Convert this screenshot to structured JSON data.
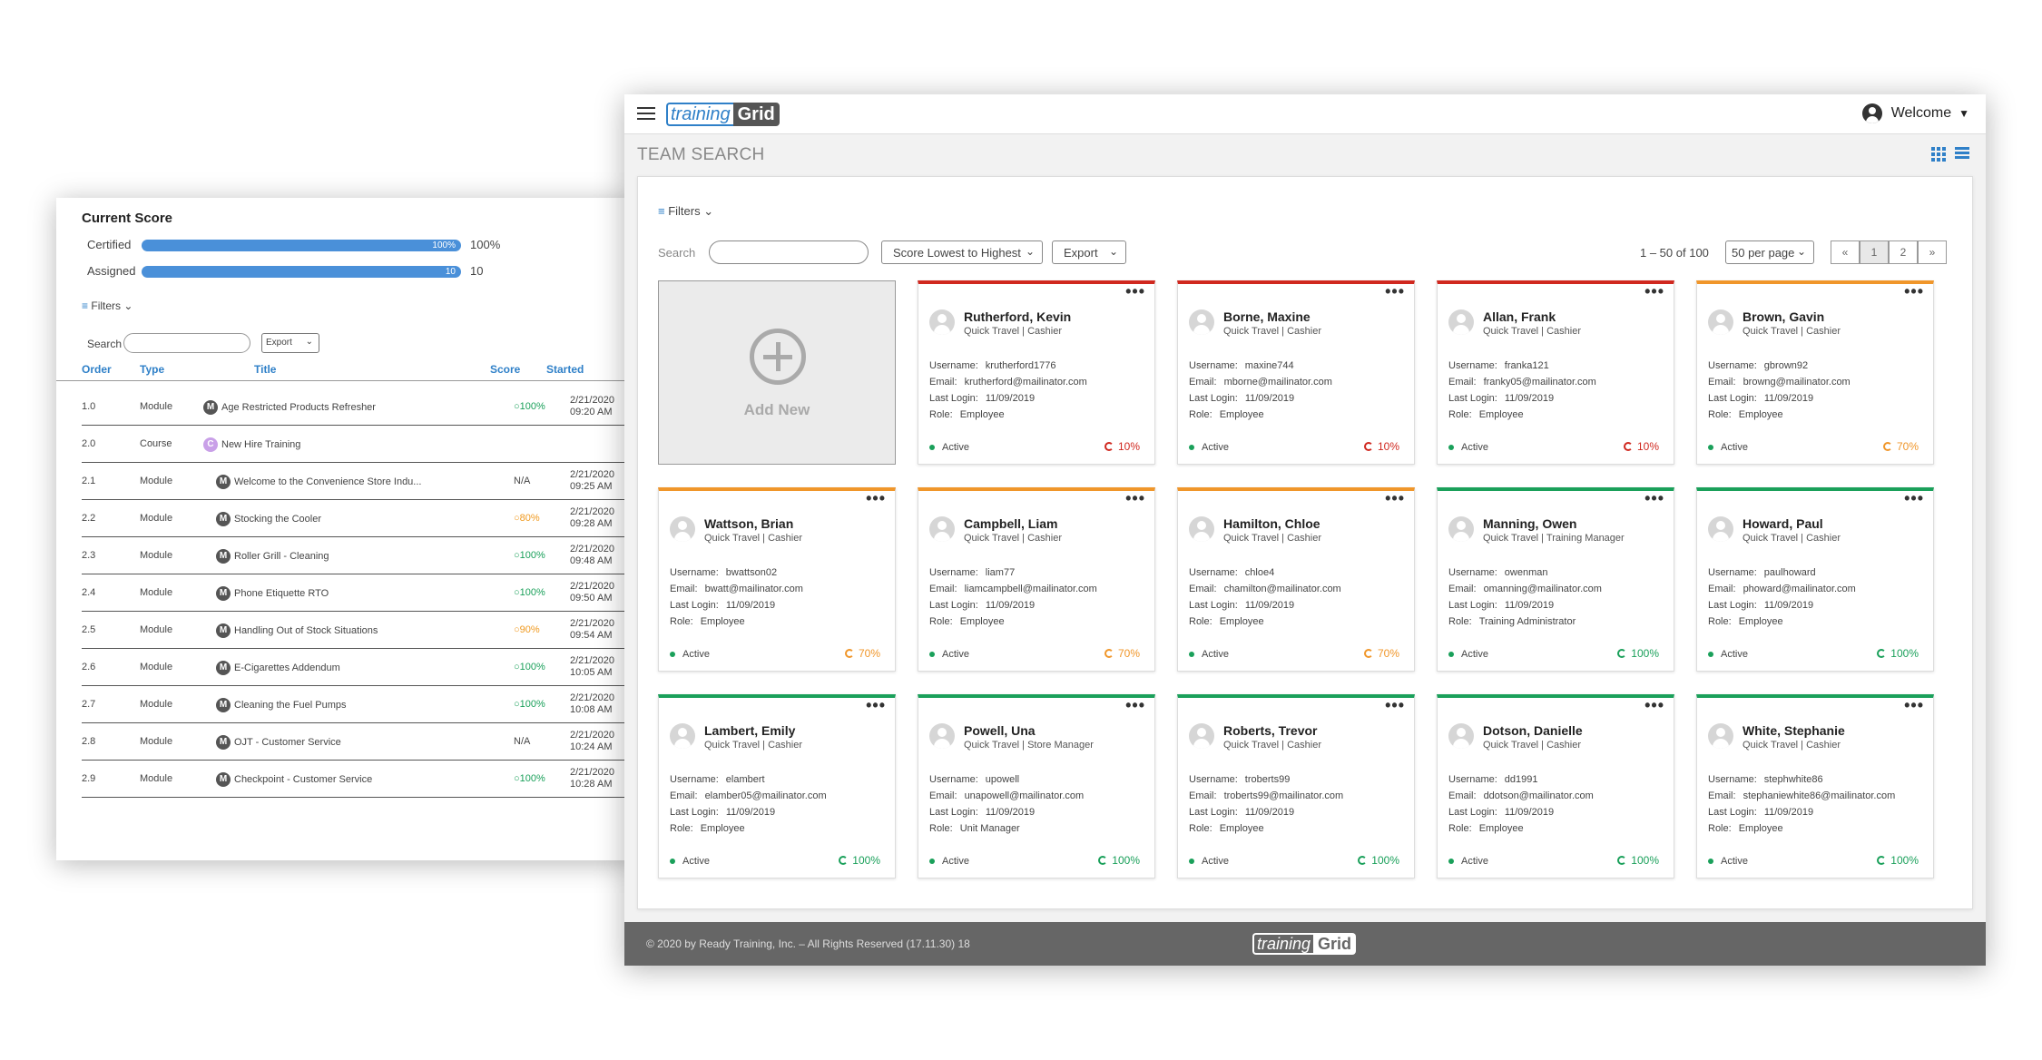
{
  "score_panel": {
    "title": "Current Score",
    "rows": [
      {
        "label": "Certified",
        "bar_text": "100%",
        "value": "100%",
        "fill": 1.0
      },
      {
        "label": "Assigned",
        "bar_text": "10",
        "value": "10",
        "fill": 1.0
      }
    ],
    "filters_label": "Filters",
    "search_label": "Search",
    "export_label": "Export",
    "columns": [
      "Order",
      "Type",
      "Title",
      "Score",
      "Started"
    ],
    "items": [
      {
        "order": "1.0",
        "type": "Module",
        "badge": "M",
        "title": "Age Restricted Products Refresher",
        "score": "100%",
        "score_color": "green",
        "started_date": "2/21/2020",
        "started_time": "09:20 AM",
        "indent": 0
      },
      {
        "order": "2.0",
        "type": "Course",
        "badge": "C",
        "title": "New Hire Training",
        "score": "",
        "score_color": "na",
        "started_date": "",
        "started_time": "",
        "indent": 0
      },
      {
        "order": "2.1",
        "type": "Module",
        "badge": "M",
        "title": "Welcome to the Convenience Store Indu...",
        "score": "N/A",
        "score_color": "na",
        "started_date": "2/21/2020",
        "started_time": "09:25 AM",
        "indent": 1
      },
      {
        "order": "2.2",
        "type": "Module",
        "badge": "M",
        "title": "Stocking the Cooler",
        "score": "80%",
        "score_color": "orange",
        "started_date": "2/21/2020",
        "started_time": "09:28 AM",
        "indent": 1
      },
      {
        "order": "2.3",
        "type": "Module",
        "badge": "M",
        "title": "Roller Grill - Cleaning",
        "score": "100%",
        "score_color": "green",
        "started_date": "2/21/2020",
        "started_time": "09:48 AM",
        "indent": 1
      },
      {
        "order": "2.4",
        "type": "Module",
        "badge": "M",
        "title": "Phone Etiquette   RTO",
        "score": "100%",
        "score_color": "green",
        "started_date": "2/21/2020",
        "started_time": "09:50 AM",
        "indent": 1
      },
      {
        "order": "2.5",
        "type": "Module",
        "badge": "M",
        "title": "Handling Out of Stock Situations",
        "score": "90%",
        "score_color": "orange",
        "started_date": "2/21/2020",
        "started_time": "09:54 AM",
        "indent": 1
      },
      {
        "order": "2.6",
        "type": "Module",
        "badge": "M",
        "title": "E-Cigarettes Addendum",
        "score": "100%",
        "score_color": "green",
        "started_date": "2/21/2020",
        "started_time": "10:05 AM",
        "indent": 1
      },
      {
        "order": "2.7",
        "type": "Module",
        "badge": "M",
        "title": "Cleaning the Fuel Pumps",
        "score": "100%",
        "score_color": "green",
        "started_date": "2/21/2020",
        "started_time": "10:08 AM",
        "indent": 1
      },
      {
        "order": "2.8",
        "type": "Module",
        "badge": "M",
        "title": "OJT - Customer Service",
        "score": "N/A",
        "score_color": "na",
        "started_date": "2/21/2020",
        "started_time": "10:24 AM",
        "indent": 1
      },
      {
        "order": "2.9",
        "type": "Module",
        "badge": "M",
        "title": "Checkpoint - Customer Service",
        "score": "100%",
        "score_color": "green",
        "started_date": "2/21/2020",
        "started_time": "10:28 AM",
        "indent": 1
      }
    ]
  },
  "app": {
    "logo_part1": "training",
    "logo_part2": "Grid",
    "welcome": "Welcome",
    "page_title": "TEAM SEARCH"
  },
  "toolbar": {
    "filters_label": "Filters",
    "search_label": "Search",
    "search_placeholder": "",
    "sort_label": "Score Lowest to Highest",
    "export_label": "Export",
    "range": "1 – 50 of 100",
    "per_page": "50 per page",
    "pages": [
      "«",
      "1",
      "2",
      "»"
    ],
    "active_page": "1"
  },
  "add_new_label": "Add New",
  "field_labels": {
    "username": "Username:",
    "email": "Email:",
    "last_login": "Last Login:",
    "role": "Role:"
  },
  "cards": [
    {
      "name": "Rutherford, Kevin",
      "subtitle": "Quick Travel | Cashier",
      "username": "krutherford1776",
      "email": "krutherford@mailinator.com",
      "last_login": "11/09/2019",
      "role": "Employee",
      "status": "Active",
      "score": "10%",
      "level": "red"
    },
    {
      "name": "Borne, Maxine",
      "subtitle": "Quick Travel | Cashier",
      "username": "maxine744",
      "email": "mborne@mailinator.com",
      "last_login": "11/09/2019",
      "role": "Employee",
      "status": "Active",
      "score": "10%",
      "level": "red"
    },
    {
      "name": "Allan, Frank",
      "subtitle": "Quick Travel | Cashier",
      "username": "franka121",
      "email": "franky05@mailinator.com",
      "last_login": "11/09/2019",
      "role": "Employee",
      "status": "Active",
      "score": "10%",
      "level": "red"
    },
    {
      "name": "Brown, Gavin",
      "subtitle": "Quick Travel | Cashier",
      "username": "gbrown92",
      "email": "browng@mailinator.com",
      "last_login": "11/09/2019",
      "role": "Employee",
      "status": "Active",
      "score": "70%",
      "level": "orange"
    },
    {
      "name": "Wattson, Brian",
      "subtitle": "Quick Travel | Cashier",
      "username": "bwattson02",
      "email": "bwatt@mailinator.com",
      "last_login": "11/09/2019",
      "role": "Employee",
      "status": "Active",
      "score": "70%",
      "level": "orange"
    },
    {
      "name": "Campbell, Liam",
      "subtitle": "Quick Travel | Cashier",
      "username": "liam77",
      "email": "liamcampbell@mailinator.com",
      "last_login": "11/09/2019",
      "role": "Employee",
      "status": "Active",
      "score": "70%",
      "level": "orange"
    },
    {
      "name": "Hamilton, Chloe",
      "subtitle": "Quick Travel | Cashier",
      "username": "chloe4",
      "email": "chamilton@mailinator.com",
      "last_login": "11/09/2019",
      "role": "Employee",
      "status": "Active",
      "score": "70%",
      "level": "orange"
    },
    {
      "name": "Manning, Owen",
      "subtitle": "Quick Travel | Training Manager",
      "username": "owenman",
      "email": "omanning@mailinator.com",
      "last_login": "11/09/2019",
      "role": "Training Administrator",
      "status": "Active",
      "score": "100%",
      "level": "green"
    },
    {
      "name": "Howard, Paul",
      "subtitle": "Quick Travel | Cashier",
      "username": "paulhoward",
      "email": "phoward@mailinator.com",
      "last_login": "11/09/2019",
      "role": "Employee",
      "status": "Active",
      "score": "100%",
      "level": "green"
    },
    {
      "name": "Lambert, Emily",
      "subtitle": "Quick Travel | Cashier",
      "username": "elambert",
      "email": "elamber05@mailinator.com",
      "last_login": "11/09/2019",
      "role": "Employee",
      "status": "Active",
      "score": "100%",
      "level": "green"
    },
    {
      "name": "Powell, Una",
      "subtitle": "Quick Travel | Store Manager",
      "username": "upowell",
      "email": "unapowell@mailinator.com",
      "last_login": "11/09/2019",
      "role": "Unit Manager",
      "status": "Active",
      "score": "100%",
      "level": "green"
    },
    {
      "name": "Roberts, Trevor",
      "subtitle": "Quick Travel | Cashier",
      "username": "troberts99",
      "email": "troberts99@mailinator.com",
      "last_login": "11/09/2019",
      "role": "Employee",
      "status": "Active",
      "score": "100%",
      "level": "green"
    },
    {
      "name": "Dotson, Danielle",
      "subtitle": "Quick Travel | Cashier",
      "username": "dd1991",
      "email": "ddotson@mailinator.com",
      "last_login": "11/09/2019",
      "role": "Employee",
      "status": "Active",
      "score": "100%",
      "level": "green"
    },
    {
      "name": "White, Stephanie",
      "subtitle": "Quick Travel | Cashier",
      "username": "stephwhite86",
      "email": "stephaniewhite86@mailinator.com",
      "last_login": "11/09/2019",
      "role": "Employee",
      "status": "Active",
      "score": "100%",
      "level": "green"
    }
  ],
  "footer": {
    "copyright": "© 2020 by Ready Training, Inc. – All Rights Reserved (17.11.30) 18",
    "logo_part1": "training",
    "logo_part2": "Grid"
  }
}
